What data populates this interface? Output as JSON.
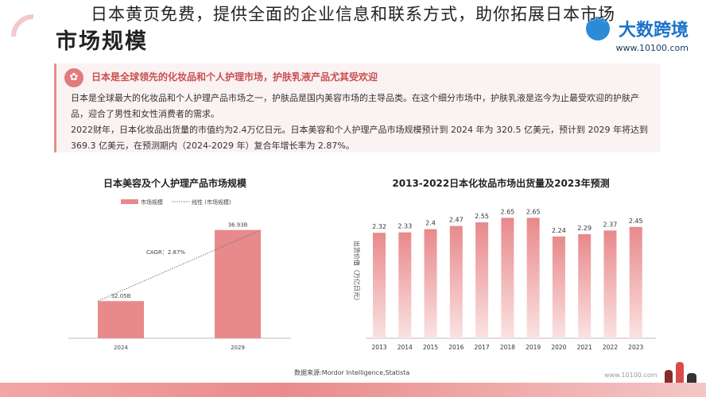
{
  "overlay_caption": "日本黄页免费，提供全面的企业信息和联系方式，助你拓展日本市场",
  "page_title": "市场规模",
  "brand": {
    "name": "大数跨境",
    "url": "www.10100.com"
  },
  "highlight": {
    "headline": "日本是全球领先的化妆品和个人护理市场，护肤乳液产品尤其受欢迎",
    "paragraphs": [
      "日本是全球最大的化妆品和个人护理产品市场之一，护肤品是国内美容市场的主导品类。在这个细分市场中，护肤乳液是迄今为止最受欢迎的护肤产品，迎合了男性和女性消费者的需求。",
      "2022财年，日本化妆品出货量的市值约为2.4万亿日元。日本美容和个人护理产品市场规模预计到 2024 年为 320.5 亿美元，预计到 2029 年将达到 369.3 亿美元，在预测期内（2024-2029 年）复合年增长率为 2.87%。"
    ]
  },
  "source_text": "数据来源:Mordor Intelligence,Statista",
  "footer_url": "www.10100.com",
  "colors": {
    "bar": "#e8898b",
    "bar_light": "#fbe2e2",
    "accent": "#c9504f"
  },
  "chart_data": [
    {
      "type": "bar",
      "title": "日本美容及个人护理产品市场规模",
      "legend": {
        "bar_label": "市场规模",
        "line_label": "线性 (市场规模)",
        "placement": "top-left"
      },
      "categories": [
        "2024",
        "2029"
      ],
      "values": [
        32.05,
        36.93
      ],
      "value_labels": [
        "32.05B",
        "36.93B"
      ],
      "annotation": "CAGR：2.87%",
      "ylim": [
        29.5,
        38
      ]
    },
    {
      "type": "bar",
      "title": "2013-2022日本化妆品市场出货量及2023年预测",
      "ylabel": "出货价值（万亿日元）",
      "categories": [
        "2013",
        "2014",
        "2015",
        "2016",
        "2017",
        "2018",
        "2019",
        "2020",
        "2021",
        "2022",
        "2023"
      ],
      "values": [
        2.32,
        2.33,
        2.4,
        2.47,
        2.55,
        2.65,
        2.65,
        2.24,
        2.29,
        2.37,
        2.45
      ],
      "ylim": [
        0,
        2.9
      ]
    }
  ]
}
